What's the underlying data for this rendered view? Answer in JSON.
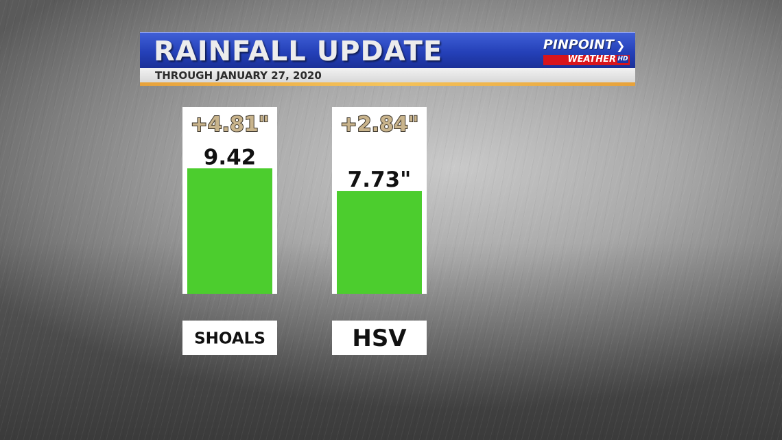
{
  "banner": {
    "title": "RAINFALL UPDATE",
    "subtitle": "THROUGH JANUARY 27, 2020"
  },
  "logo": {
    "top": "PINPOINT",
    "bottom": "WEATHER",
    "badge": "HD"
  },
  "chart_data": {
    "type": "bar",
    "title": "RAINFALL UPDATE",
    "subtitle": "THROUGH JANUARY 27, 2020",
    "categories": [
      "SHOALS",
      "HSV"
    ],
    "values": [
      9.42,
      7.73
    ],
    "value_labels": [
      "9.42",
      "7.73\""
    ],
    "departure_labels": [
      "+4.81\"",
      "+2.84\""
    ],
    "ylim": [
      0,
      10
    ],
    "grid": false,
    "legend": "none",
    "colors": {
      "bar": "#4ccd2e",
      "panel": "#ffffff",
      "departure": "#c9b48c",
      "departure_outline": "#3a3328",
      "value_text": "#111111"
    }
  }
}
